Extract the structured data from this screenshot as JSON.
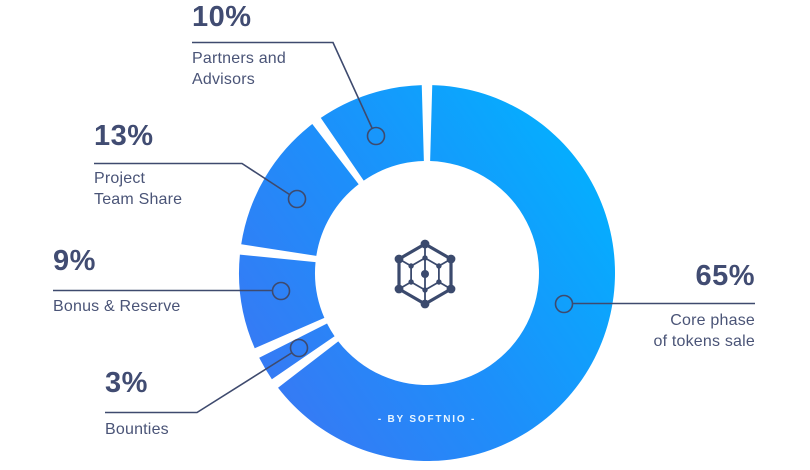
{
  "chart": {
    "background": "#ffffff",
    "label_color": "#414c72",
    "sublabel_color": "#4a5477",
    "leader_line_color": "#3e4a6e",
    "gradient": {
      "from": "#3b76f3",
      "mid": "#1e8efa",
      "to": "#00b4ff"
    }
  },
  "chart_data": {
    "type": "pie",
    "subtype": "donut",
    "direction": "clockwise",
    "start_angle_deg": 0,
    "legend_position": "external-callouts",
    "watermark": "- BY SOFTNIO -",
    "center_icon": "hexagon-network-logo",
    "segments": [
      {
        "id": "core-phase",
        "label": "Core phase of tokens sale",
        "value": 65
      },
      {
        "id": "bounties",
        "label": "Bounties",
        "value": 3
      },
      {
        "id": "bonus-reserve",
        "label": "Bonus & Reserve",
        "value": 9
      },
      {
        "id": "project-team",
        "label": "Project Team Share",
        "value": 13
      },
      {
        "id": "partners-advisors",
        "label": "Partners and Advisors",
        "value": 10
      }
    ]
  },
  "callouts": [
    {
      "percent": "10%",
      "label": "Partners and\nAdvisors"
    },
    {
      "percent": "13%",
      "label": "Project\nTeam Share"
    },
    {
      "percent": "9%",
      "label": "Bonus & Reserve"
    },
    {
      "percent": "3%",
      "label": "Bounties"
    },
    {
      "percent": "65%",
      "label": "Core phase\nof tokens sale"
    }
  ]
}
